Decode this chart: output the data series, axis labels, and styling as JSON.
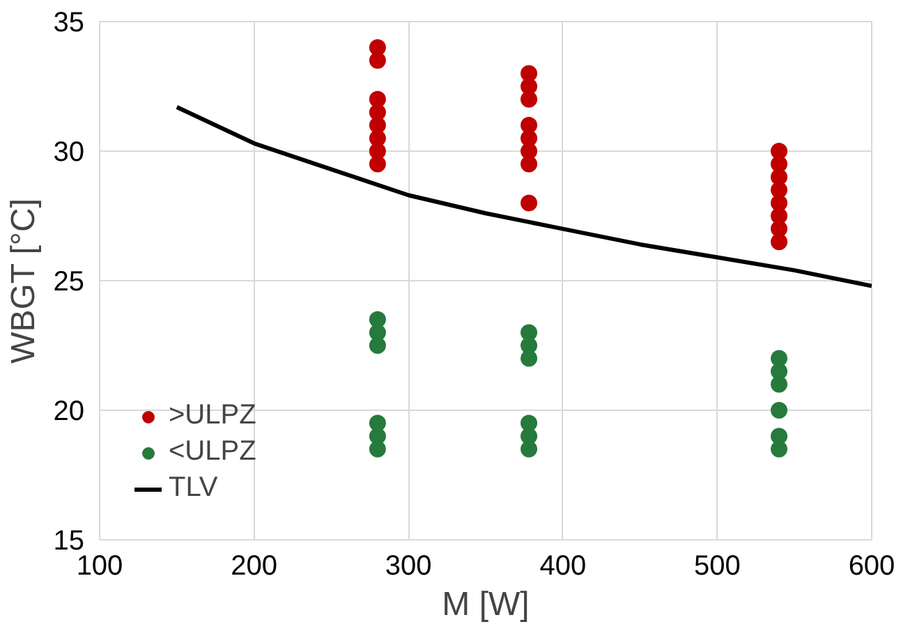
{
  "chart_data": {
    "type": "scatter",
    "xlabel": "M [W]",
    "ylabel": "WBGT [°C]",
    "xlim": [
      100,
      600
    ],
    "ylim": [
      15,
      35
    ],
    "xticks": [
      100,
      200,
      300,
      400,
      500,
      600
    ],
    "yticks": [
      15,
      20,
      25,
      30,
      35
    ],
    "grid": true,
    "legend": "bottom left",
    "marker": "circle",
    "series": [
      {
        "name": ">ULPZ",
        "color": "#c00000",
        "x": [
          280,
          280,
          280,
          280,
          280,
          280,
          280,
          280,
          378,
          378,
          378,
          378,
          378,
          378,
          378,
          378,
          540,
          540,
          540,
          540,
          540,
          540,
          540,
          540
        ],
        "values": [
          34,
          33.5,
          32,
          31.5,
          31,
          30.5,
          30,
          29.5,
          33,
          32.5,
          32,
          31,
          30.5,
          30,
          29.5,
          28,
          30,
          29.5,
          29,
          28.5,
          28,
          27.5,
          27,
          26.5
        ]
      },
      {
        "name": "<ULPZ",
        "color": "#267a3c",
        "x": [
          280,
          280,
          280,
          280,
          280,
          280,
          378,
          378,
          378,
          378,
          378,
          378,
          540,
          540,
          540,
          540,
          540,
          540
        ],
        "values": [
          23.5,
          23,
          22.5,
          19.5,
          19,
          18.5,
          23,
          22.5,
          22,
          19.5,
          19,
          18.5,
          22,
          21.5,
          21,
          20,
          19,
          18.5
        ]
      },
      {
        "name": "TLV",
        "type": "line",
        "color": "#000000",
        "marker": "none",
        "x": [
          150,
          200,
          250,
          300,
          350,
          400,
          450,
          500,
          550,
          600
        ],
        "values": [
          31.7,
          30.3,
          29.3,
          28.3,
          27.6,
          27.0,
          26.4,
          25.9,
          25.4,
          24.8
        ]
      }
    ]
  }
}
